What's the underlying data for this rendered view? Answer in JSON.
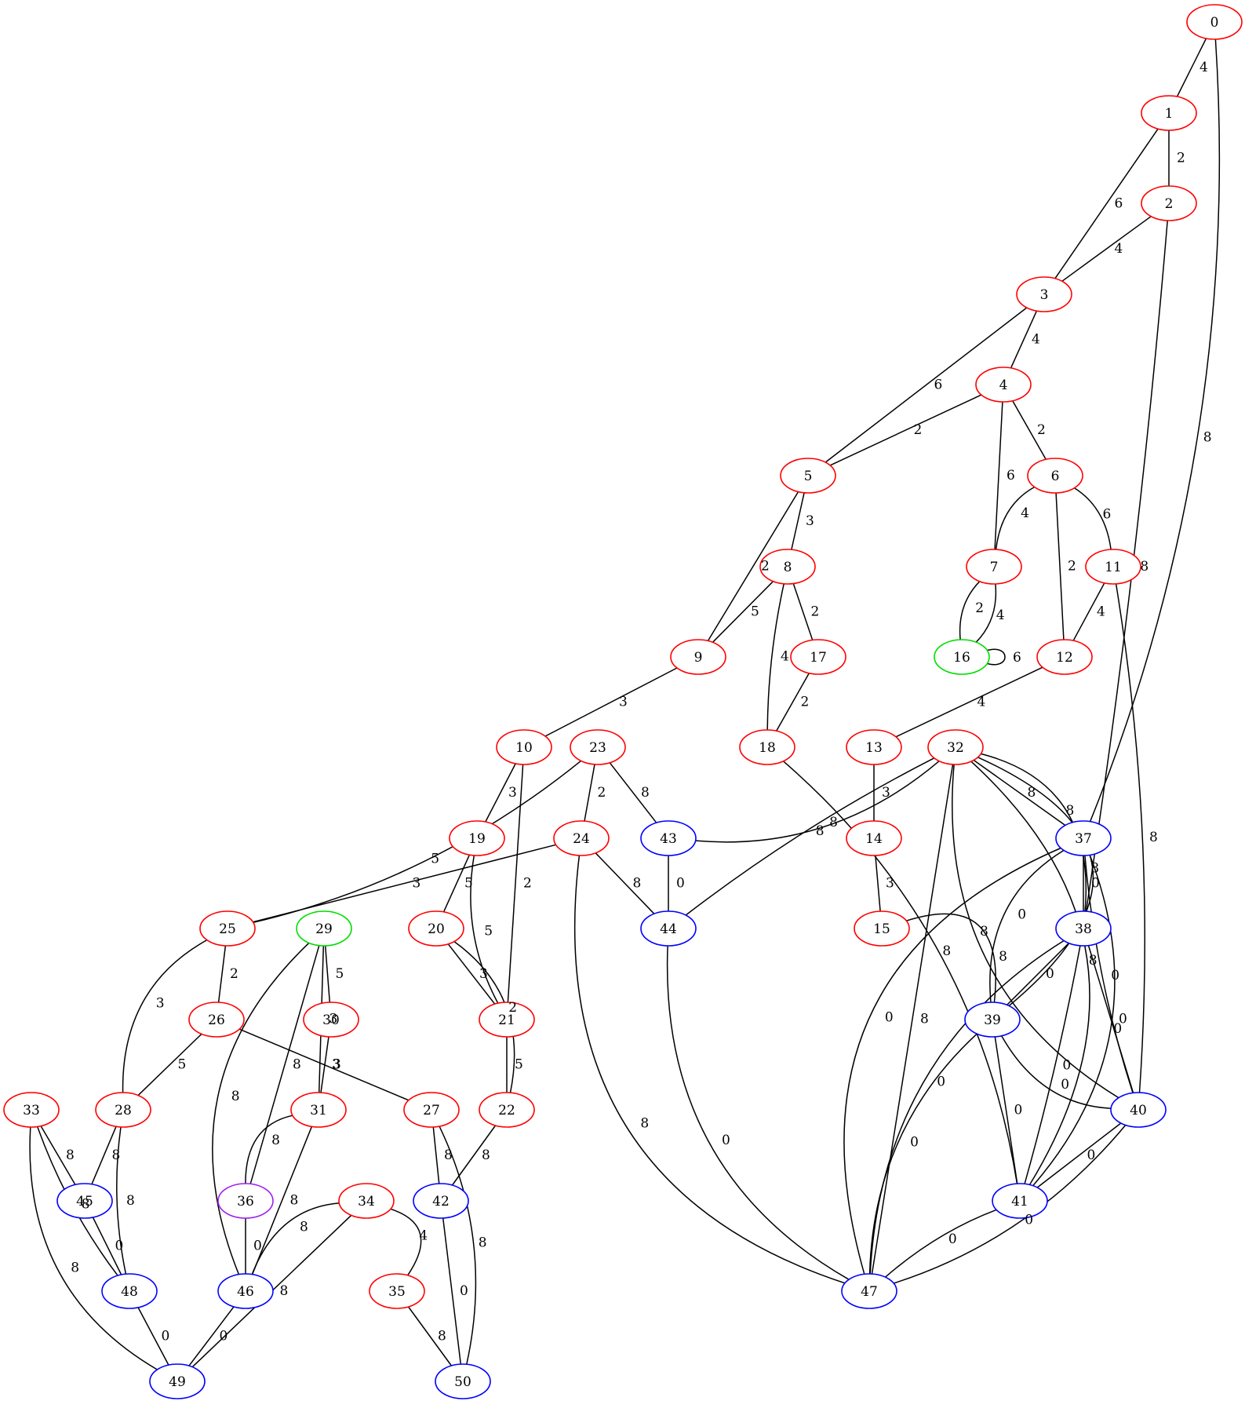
{
  "colors": {
    "red": "#ff0000",
    "blue": "#0000ff",
    "green": "#00dd00",
    "purple": "#a020f0",
    "edge": "#000000"
  },
  "nodes": [
    {
      "id": "0",
      "color": "red"
    },
    {
      "id": "1",
      "color": "red"
    },
    {
      "id": "2",
      "color": "red"
    },
    {
      "id": "3",
      "color": "red"
    },
    {
      "id": "4",
      "color": "red"
    },
    {
      "id": "5",
      "color": "red"
    },
    {
      "id": "6",
      "color": "red"
    },
    {
      "id": "7",
      "color": "red"
    },
    {
      "id": "8",
      "color": "red"
    },
    {
      "id": "9",
      "color": "red"
    },
    {
      "id": "10",
      "color": "red"
    },
    {
      "id": "11",
      "color": "red"
    },
    {
      "id": "12",
      "color": "red"
    },
    {
      "id": "13",
      "color": "red"
    },
    {
      "id": "14",
      "color": "red"
    },
    {
      "id": "15",
      "color": "red"
    },
    {
      "id": "16",
      "color": "green"
    },
    {
      "id": "17",
      "color": "red"
    },
    {
      "id": "18",
      "color": "red"
    },
    {
      "id": "19",
      "color": "red"
    },
    {
      "id": "20",
      "color": "red"
    },
    {
      "id": "21",
      "color": "red"
    },
    {
      "id": "22",
      "color": "red"
    },
    {
      "id": "23",
      "color": "red"
    },
    {
      "id": "24",
      "color": "red"
    },
    {
      "id": "25",
      "color": "red"
    },
    {
      "id": "26",
      "color": "red"
    },
    {
      "id": "27",
      "color": "red"
    },
    {
      "id": "28",
      "color": "red"
    },
    {
      "id": "29",
      "color": "green"
    },
    {
      "id": "30",
      "color": "red"
    },
    {
      "id": "31",
      "color": "red"
    },
    {
      "id": "32",
      "color": "red"
    },
    {
      "id": "33",
      "color": "red"
    },
    {
      "id": "34",
      "color": "red"
    },
    {
      "id": "35",
      "color": "red"
    },
    {
      "id": "36",
      "color": "purple"
    },
    {
      "id": "37",
      "color": "blue"
    },
    {
      "id": "38",
      "color": "blue"
    },
    {
      "id": "39",
      "color": "blue"
    },
    {
      "id": "40",
      "color": "blue"
    },
    {
      "id": "41",
      "color": "blue"
    },
    {
      "id": "42",
      "color": "blue"
    },
    {
      "id": "43",
      "color": "blue"
    },
    {
      "id": "44",
      "color": "blue"
    },
    {
      "id": "45",
      "color": "blue"
    },
    {
      "id": "46",
      "color": "blue"
    },
    {
      "id": "47",
      "color": "blue"
    },
    {
      "id": "48",
      "color": "blue"
    },
    {
      "id": "49",
      "color": "blue"
    },
    {
      "id": "50",
      "color": "blue"
    }
  ],
  "edges": [
    {
      "from": "0",
      "to": "1",
      "label": "4"
    },
    {
      "from": "0",
      "to": "37",
      "label": "8"
    },
    {
      "from": "1",
      "to": "2",
      "label": "2"
    },
    {
      "from": "1",
      "to": "3",
      "label": "6"
    },
    {
      "from": "2",
      "to": "3",
      "label": "4"
    },
    {
      "from": "2",
      "to": "38",
      "label": "8"
    },
    {
      "from": "3",
      "to": "4",
      "label": "4"
    },
    {
      "from": "3",
      "to": "5",
      "label": "6"
    },
    {
      "from": "4",
      "to": "5",
      "label": "2"
    },
    {
      "from": "4",
      "to": "6",
      "label": "2"
    },
    {
      "from": "4",
      "to": "7",
      "label": "6"
    },
    {
      "from": "5",
      "to": "8",
      "label": "3"
    },
    {
      "from": "5",
      "to": "9",
      "label": "2"
    },
    {
      "from": "6",
      "to": "7",
      "label": "4"
    },
    {
      "from": "6",
      "to": "11",
      "label": "6"
    },
    {
      "from": "6",
      "to": "12",
      "label": "2"
    },
    {
      "from": "7",
      "to": "16",
      "label": "2"
    },
    {
      "from": "7",
      "to": "16",
      "label": "4"
    },
    {
      "from": "16",
      "to": "16",
      "label": "6"
    },
    {
      "from": "8",
      "to": "9",
      "label": "5"
    },
    {
      "from": "8",
      "to": "17",
      "label": "2"
    },
    {
      "from": "8",
      "to": "18",
      "label": "4"
    },
    {
      "from": "11",
      "to": "12",
      "label": "4"
    },
    {
      "from": "11",
      "to": "40",
      "label": "8"
    },
    {
      "from": "9",
      "to": "10",
      "label": "3"
    },
    {
      "from": "17",
      "to": "18",
      "label": "2"
    },
    {
      "from": "12",
      "to": "13",
      "label": "4"
    },
    {
      "from": "18",
      "to": "41",
      "label": "8"
    },
    {
      "from": "10",
      "to": "19",
      "label": "3"
    },
    {
      "from": "10",
      "to": "21",
      "label": "2"
    },
    {
      "from": "23",
      "to": "24",
      "label": "2"
    },
    {
      "from": "23",
      "to": "43",
      "label": "8"
    },
    {
      "from": "23",
      "to": "25",
      "label": "5"
    },
    {
      "from": "13",
      "to": "14",
      "label": "3"
    },
    {
      "from": "14",
      "to": "15",
      "label": "3"
    },
    {
      "from": "15",
      "to": "39",
      "label": "8"
    },
    {
      "from": "32",
      "to": "43",
      "label": "8"
    },
    {
      "from": "32",
      "to": "44",
      "label": "8"
    },
    {
      "from": "32",
      "to": "37",
      "label": "8"
    },
    {
      "from": "32",
      "to": "38",
      "label": "8"
    },
    {
      "from": "32",
      "to": "39",
      "label": "8"
    },
    {
      "from": "32",
      "to": "40",
      "label": "8"
    },
    {
      "from": "32",
      "to": "41",
      "label": "8"
    },
    {
      "from": "32",
      "to": "47",
      "label": "8"
    },
    {
      "from": "19",
      "to": "20",
      "label": "5"
    },
    {
      "from": "19",
      "to": "21",
      "label": "5"
    },
    {
      "from": "24",
      "to": "25",
      "label": "3"
    },
    {
      "from": "24",
      "to": "44",
      "label": "8"
    },
    {
      "from": "24",
      "to": "47",
      "label": "8"
    },
    {
      "from": "43",
      "to": "44",
      "label": "0"
    },
    {
      "from": "44",
      "to": "47",
      "label": "0"
    },
    {
      "from": "37",
      "to": "38",
      "label": "0"
    },
    {
      "from": "37",
      "to": "39",
      "label": "0"
    },
    {
      "from": "37",
      "to": "40",
      "label": "0"
    },
    {
      "from": "37",
      "to": "41",
      "label": "0"
    },
    {
      "from": "37",
      "to": "47",
      "label": "0"
    },
    {
      "from": "38",
      "to": "39",
      "label": "0"
    },
    {
      "from": "38",
      "to": "40",
      "label": "0"
    },
    {
      "from": "38",
      "to": "41",
      "label": "0"
    },
    {
      "from": "38",
      "to": "47",
      "label": "0"
    },
    {
      "from": "39",
      "to": "40",
      "label": "0"
    },
    {
      "from": "39",
      "to": "41",
      "label": "0"
    },
    {
      "from": "39",
      "to": "47",
      "label": "0"
    },
    {
      "from": "40",
      "to": "41",
      "label": "0"
    },
    {
      "from": "40",
      "to": "47",
      "label": "0"
    },
    {
      "from": "41",
      "to": "47",
      "label": "0"
    },
    {
      "from": "20",
      "to": "21",
      "label": "3"
    },
    {
      "from": "20",
      "to": "22",
      "label": "2"
    },
    {
      "from": "21",
      "to": "22",
      "label": "5"
    },
    {
      "from": "22",
      "to": "42",
      "label": "8"
    },
    {
      "from": "25",
      "to": "26",
      "label": "2"
    },
    {
      "from": "25",
      "to": "28",
      "label": "3"
    },
    {
      "from": "26",
      "to": "28",
      "label": "5"
    },
    {
      "from": "26",
      "to": "27",
      "label": "3"
    },
    {
      "from": "29",
      "to": "30",
      "label": "5"
    },
    {
      "from": "29",
      "to": "31",
      "label": "3"
    },
    {
      "from": "29",
      "to": "36",
      "label": "8"
    },
    {
      "from": "29",
      "to": "46",
      "label": "8"
    },
    {
      "from": "30",
      "to": "31",
      "label": "3"
    },
    {
      "from": "31",
      "to": "36",
      "label": "8"
    },
    {
      "from": "31",
      "to": "46",
      "label": "8"
    },
    {
      "from": "27",
      "to": "42",
      "label": "8"
    },
    {
      "from": "27",
      "to": "50",
      "label": "8"
    },
    {
      "from": "28",
      "to": "45",
      "label": "8"
    },
    {
      "from": "28",
      "to": "48",
      "label": "8"
    },
    {
      "from": "33",
      "to": "45",
      "label": "8"
    },
    {
      "from": "33",
      "to": "48",
      "label": "8"
    },
    {
      "from": "33",
      "to": "49",
      "label": "8"
    },
    {
      "from": "36",
      "to": "46",
      "label": "0"
    },
    {
      "from": "34",
      "to": "46",
      "label": "8"
    },
    {
      "from": "34",
      "to": "35",
      "label": "4"
    },
    {
      "from": "34",
      "to": "49",
      "label": "8"
    },
    {
      "from": "42",
      "to": "50",
      "label": "0"
    },
    {
      "from": "45",
      "to": "48",
      "label": "0"
    },
    {
      "from": "48",
      "to": "49",
      "label": "0"
    },
    {
      "from": "46",
      "to": "49",
      "label": "0"
    },
    {
      "from": "35",
      "to": "50",
      "label": "8"
    }
  ]
}
